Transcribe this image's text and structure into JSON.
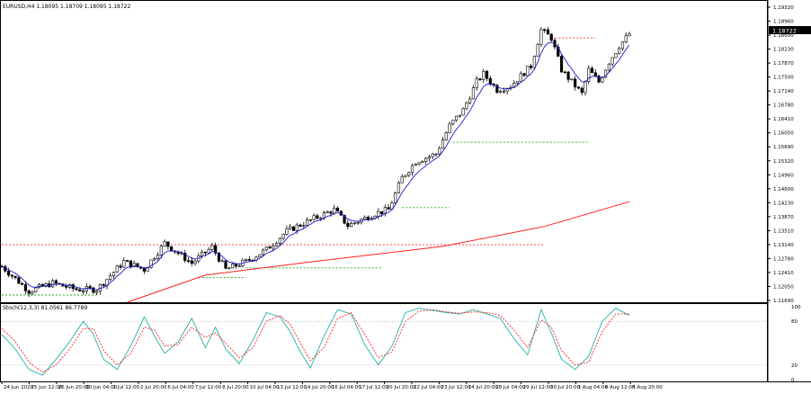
{
  "window": {
    "header_text": "EURUSD,H4  1.18095 1.18709 1.18095 1.18722",
    "current_price": "1.18722"
  },
  "colors": {
    "bull": "#ffffff",
    "bear": "#000000",
    "outline": "#000000",
    "ma_fast": "#1a1acc",
    "ma_slow": "#ff2020",
    "stoch_main": "#20b2aa",
    "stoch_signal": "#ff2020",
    "sr_red": "#ff3030",
    "sr_green": "#22aa22",
    "arrow_up": "#00cc88",
    "fractal": "#e8c020"
  },
  "chart_data": [
    {
      "type": "candlestick",
      "symbol": "EURUSD",
      "timeframe": "H4",
      "ylim": [
        1.12,
        1.193
      ],
      "y_ticks": [
        "1.19320",
        "1.18960",
        "1.18600",
        "1.18230",
        "1.17870",
        "1.17500",
        "1.17140",
        "1.16780",
        "1.16410",
        "1.16050",
        "1.15690",
        "1.15320",
        "1.14960",
        "1.14600",
        "1.14230",
        "1.13870",
        "1.13510",
        "1.13140",
        "1.12780",
        "1.12410",
        "1.12050",
        "1.11690"
      ],
      "x_ticks": [
        "24 Jun 2020",
        "25 Jun 12:00",
        "26 Jun 20:00",
        "30 Jun 04:00",
        "1 Jul 12:00",
        "2 Jul 20:00",
        "6 Jul 04:00",
        "7 Jul 12:00",
        "8 Jul 20:00",
        "10 Jul 04:00",
        "13 Jul 12:00",
        "14 Jul 20:00",
        "16 Jul 04:00",
        "17 Jul 12:00",
        "20 Jul 20:00",
        "22 Jul 04:00",
        "23 Jul 12:00",
        "24 Jul 20:00",
        "28 Jul 04:00",
        "29 Jul 12:00",
        "30 Jul 20:00",
        "3 Aug 04:00",
        "4 Aug 12:00",
        "5 Aug 20:00"
      ],
      "candle_count": 186,
      "price_path": [
        [
          0,
          1.129
        ],
        [
          8,
          1.1228
        ],
        [
          15,
          1.1248
        ],
        [
          22,
          1.1232
        ],
        [
          28,
          1.1232
        ],
        [
          36,
          1.1302
        ],
        [
          42,
          1.1282
        ],
        [
          48,
          1.1348
        ],
        [
          56,
          1.1298
        ],
        [
          62,
          1.1338
        ],
        [
          66,
          1.1282
        ],
        [
          72,
          1.1302
        ],
        [
          78,
          1.1332
        ],
        [
          84,
          1.1378
        ],
        [
          90,
          1.1402
        ],
        [
          98,
          1.1432
        ],
        [
          102,
          1.1392
        ],
        [
          110,
          1.1422
        ],
        [
          114,
          1.1432
        ],
        [
          118,
          1.1512
        ],
        [
          122,
          1.1552
        ],
        [
          128,
          1.1572
        ],
        [
          132,
          1.1642
        ],
        [
          136,
          1.1682
        ],
        [
          140,
          1.1752
        ],
        [
          142,
          1.1772
        ],
        [
          146,
          1.1732
        ],
        [
          150,
          1.1742
        ],
        [
          156,
          1.1792
        ],
        [
          159,
          1.1882
        ],
        [
          162,
          1.1862
        ],
        [
          165,
          1.1782
        ],
        [
          168,
          1.1752
        ],
        [
          171,
          1.1722
        ],
        [
          173,
          1.1782
        ],
        [
          176,
          1.1752
        ],
        [
          179,
          1.1802
        ],
        [
          182,
          1.1842
        ],
        [
          185,
          1.1872
        ]
      ],
      "ma_fast_label": "",
      "ma_slow_path": [
        [
          37,
          1.12
        ],
        [
          60,
          1.1268
        ],
        [
          90,
          1.13
        ],
        [
          130,
          1.134
        ],
        [
          160,
          1.139
        ],
        [
          185,
          1.1452
        ]
      ],
      "levels": [
        {
          "color": "red",
          "price": 1.1344,
          "from": 0,
          "to": 160
        },
        {
          "color": "red",
          "price": 1.1862,
          "from": 162,
          "to": 175
        },
        {
          "color": "green",
          "price": 1.1601,
          "from": 133,
          "to": 173
        },
        {
          "color": "green",
          "price": 1.1437,
          "from": 118,
          "to": 132
        },
        {
          "color": "green",
          "price": 1.1286,
          "from": 72,
          "to": 112
        },
        {
          "color": "green",
          "price": 1.1262,
          "from": 58,
          "to": 72
        },
        {
          "color": "green",
          "price": 1.1218,
          "from": 0,
          "to": 28
        }
      ]
    },
    {
      "type": "line",
      "title": "Stoch(12,3,3) 81.0561 86.7789",
      "ylim": [
        0,
        100
      ],
      "y_ticks": [
        "100",
        "80",
        "20",
        "0"
      ],
      "levels": [
        80,
        20
      ],
      "series": [
        {
          "name": "main",
          "path": [
            [
              0,
              62
            ],
            [
              4,
              42
            ],
            [
              8,
              14
            ],
            [
              12,
              6
            ],
            [
              16,
              28
            ],
            [
              20,
              52
            ],
            [
              24,
              80
            ],
            [
              27,
              62
            ],
            [
              30,
              28
            ],
            [
              34,
              14
            ],
            [
              38,
              46
            ],
            [
              42,
              86
            ],
            [
              45,
              60
            ],
            [
              48,
              36
            ],
            [
              52,
              52
            ],
            [
              56,
              84
            ],
            [
              60,
              44
            ],
            [
              63,
              72
            ],
            [
              66,
              42
            ],
            [
              70,
              22
            ],
            [
              74,
              54
            ],
            [
              78,
              92
            ],
            [
              82,
              86
            ],
            [
              85,
              66
            ],
            [
              88,
              38
            ],
            [
              91,
              16
            ],
            [
              95,
              60
            ],
            [
              99,
              96
            ],
            [
              103,
              90
            ],
            [
              107,
              48
            ],
            [
              111,
              20
            ],
            [
              115,
              46
            ],
            [
              119,
              92
            ],
            [
              123,
              98
            ],
            [
              127,
              95
            ],
            [
              131,
              92
            ],
            [
              135,
              90
            ],
            [
              139,
              96
            ],
            [
              143,
              90
            ],
            [
              147,
              84
            ],
            [
              151,
              56
            ],
            [
              155,
              34
            ],
            [
              159,
              96
            ],
            [
              162,
              64
            ],
            [
              165,
              28
            ],
            [
              169,
              14
            ],
            [
              173,
              32
            ],
            [
              177,
              80
            ],
            [
              181,
              98
            ],
            [
              185,
              88
            ]
          ]
        },
        {
          "name": "signal",
          "path": [
            [
              0,
              70
            ],
            [
              4,
              52
            ],
            [
              8,
              24
            ],
            [
              12,
              10
            ],
            [
              16,
              20
            ],
            [
              20,
              42
            ],
            [
              24,
              70
            ],
            [
              27,
              70
            ],
            [
              30,
              40
            ],
            [
              34,
              20
            ],
            [
              38,
              36
            ],
            [
              42,
              72
            ],
            [
              45,
              68
            ],
            [
              48,
              46
            ],
            [
              52,
              48
            ],
            [
              56,
              72
            ],
            [
              60,
              58
            ],
            [
              63,
              64
            ],
            [
              66,
              50
            ],
            [
              70,
              30
            ],
            [
              74,
              44
            ],
            [
              78,
              80
            ],
            [
              82,
              88
            ],
            [
              85,
              76
            ],
            [
              88,
              50
            ],
            [
              91,
              26
            ],
            [
              95,
              44
            ],
            [
              99,
              84
            ],
            [
              103,
              92
            ],
            [
              107,
              62
            ],
            [
              111,
              30
            ],
            [
              115,
              38
            ],
            [
              119,
              80
            ],
            [
              123,
              94
            ],
            [
              127,
              96
            ],
            [
              131,
              93
            ],
            [
              135,
              91
            ],
            [
              139,
              93
            ],
            [
              143,
              92
            ],
            [
              147,
              88
            ],
            [
              151,
              68
            ],
            [
              155,
              44
            ],
            [
              159,
              82
            ],
            [
              162,
              72
            ],
            [
              165,
              40
            ],
            [
              169,
              20
            ],
            [
              173,
              24
            ],
            [
              177,
              66
            ],
            [
              181,
              90
            ],
            [
              185,
              90
            ]
          ]
        }
      ]
    }
  ]
}
